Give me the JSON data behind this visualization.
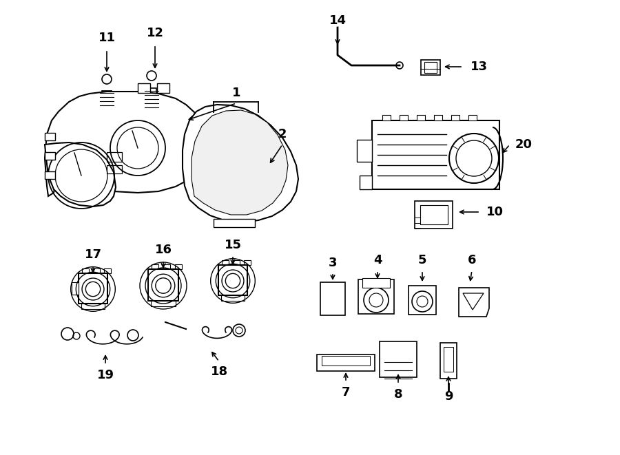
{
  "bg_color": "#ffffff",
  "line_color": "#000000",
  "text_color": "#000000",
  "figsize": [
    9.0,
    6.61
  ],
  "dpi": 100
}
